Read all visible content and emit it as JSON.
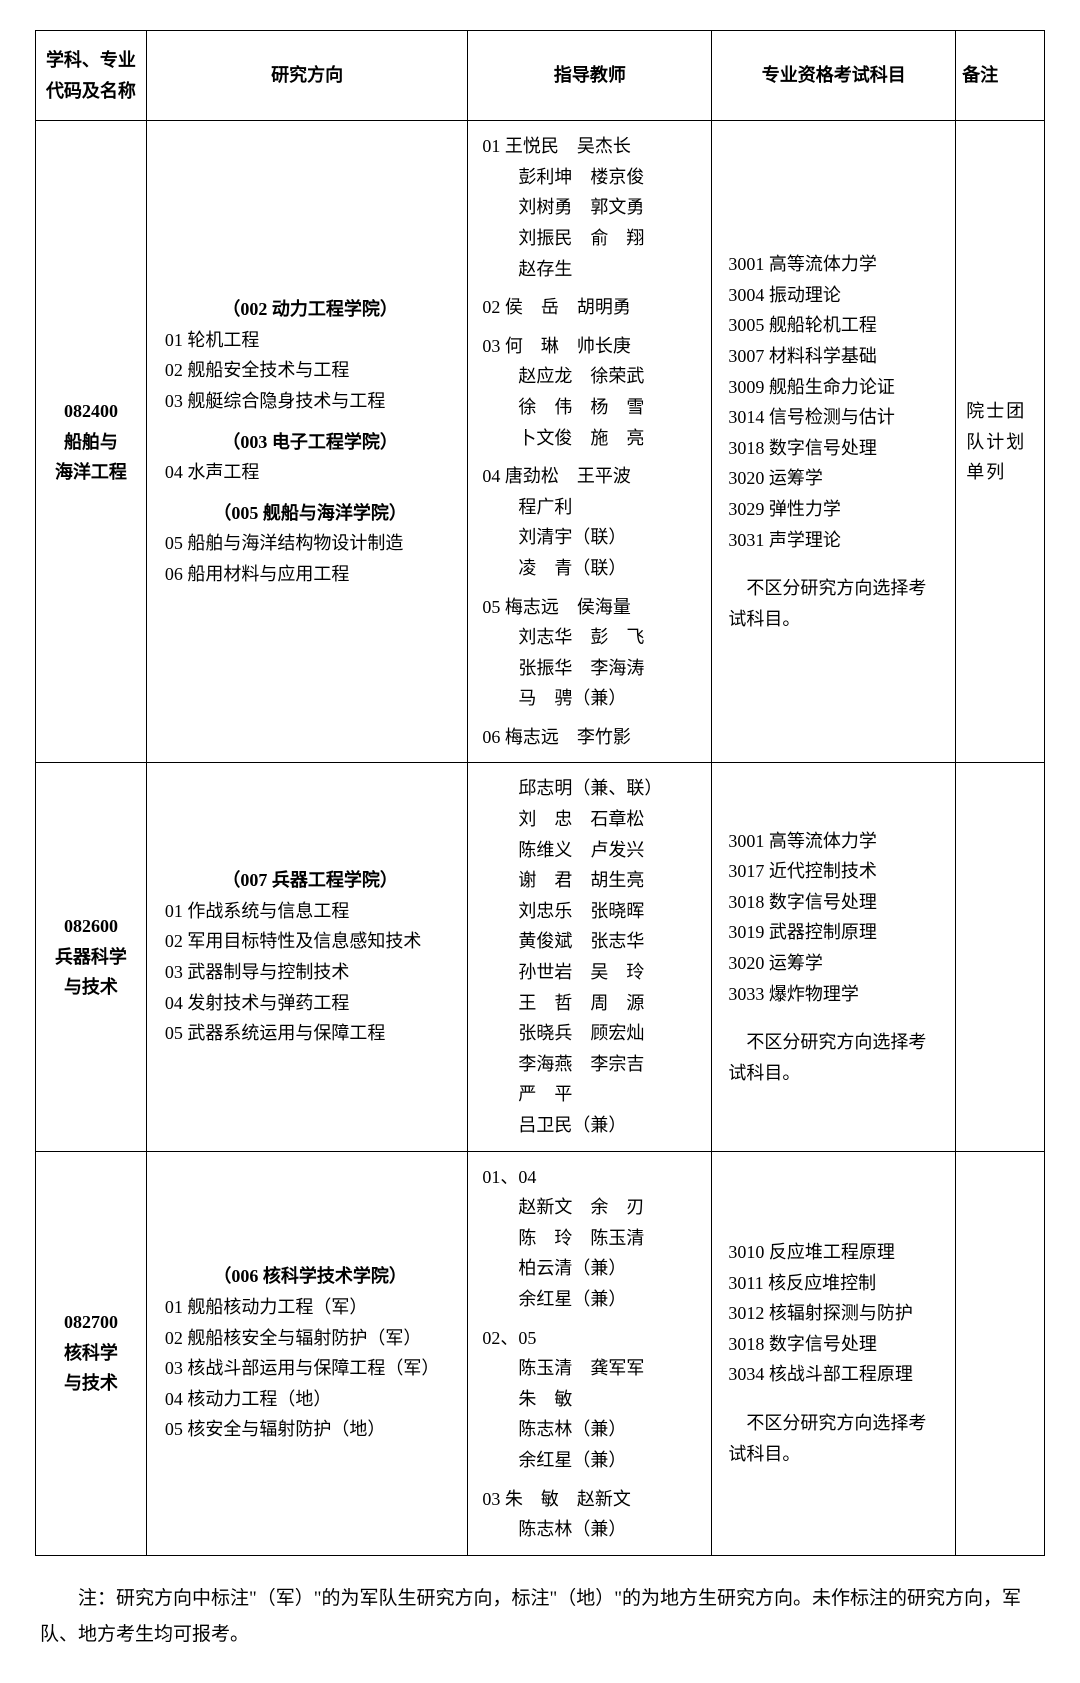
{
  "headers": {
    "code": "学科、专业代码及名称",
    "direction": "研究方向",
    "teacher": "指导教师",
    "exam": "专业资格考试科目",
    "note": "备注"
  },
  "rows": [
    {
      "code": "082400",
      "name": "船舶与\n海洋工程",
      "schools": [
        {
          "title": "（002 动力工程学院）",
          "items": [
            "01 轮机工程",
            "02 舰船安全技术与工程",
            "03 舰艇综合隐身技术与工程"
          ]
        },
        {
          "title": "（003 电子工程学院）",
          "items": [
            "04 水声工程"
          ]
        },
        {
          "title": "（005 舰船与海洋学院）",
          "items": [
            "05 船舶与海洋结构物设计制造",
            "06 船用材料与应用工程"
          ]
        }
      ],
      "teachers": [
        {
          "idx": "01",
          "names": [
            "王悦民　吴杰长",
            "彭利坤　楼京俊",
            "刘树勇　郭文勇",
            "刘振民　俞　翔",
            "赵存生"
          ]
        },
        {
          "idx": "02",
          "names": [
            "侯　岳　胡明勇"
          ]
        },
        {
          "idx": "03",
          "names": [
            "何　琳　帅长庚",
            "赵应龙　徐荣武",
            "徐　伟　杨　雪",
            "卜文俊　施　亮"
          ]
        },
        {
          "idx": "04",
          "names": [
            "唐劲松　王平波",
            "程广利",
            "刘清宇（联）",
            "凌　青（联）"
          ]
        },
        {
          "idx": "05",
          "names": [
            "梅志远　侯海量",
            "刘志华　彭　飞",
            "张振华　李海涛",
            "马　骋（兼）"
          ]
        },
        {
          "idx": "06",
          "names": [
            "梅志远　李竹影"
          ]
        }
      ],
      "exams": [
        "3001 高等流体力学",
        "3004 振动理论",
        "3005 舰船轮机工程",
        "3007 材料科学基础",
        "3009 舰船生命力论证",
        "3014 信号检测与估计",
        "3018 数字信号处理",
        "3020 运筹学",
        "3029 弹性力学",
        "3031 声学理论"
      ],
      "exam_note": "　不区分研究方向选择考试科目。",
      "note": "院士团队计划单列"
    },
    {
      "code": "082600",
      "name": "兵器科学\n与技术",
      "schools": [
        {
          "title": "（007 兵器工程学院）",
          "items": [
            "01 作战系统与信息工程",
            "02 军用目标特性及信息感知技术",
            "03 武器制导与控制技术",
            "04 发射技术与弹药工程",
            "05 武器系统运用与保障工程"
          ]
        }
      ],
      "teachers": [
        {
          "idx": "",
          "names": [
            "邱志明（兼、联）",
            "刘　忠　石章松",
            "陈维义　卢发兴",
            "谢　君　胡生亮",
            "刘忠乐　张晓晖",
            "黄俊斌　张志华",
            "孙世岩　吴　玲",
            "王　哲　周　源",
            "张晓兵　顾宏灿",
            "李海燕　李宗吉",
            "严　平",
            "吕卫民（兼）"
          ]
        }
      ],
      "exams": [
        "3001 高等流体力学",
        "3017 近代控制技术",
        "3018 数字信号处理",
        "3019 武器控制原理",
        "3020 运筹学",
        "3033 爆炸物理学"
      ],
      "exam_note": "　不区分研究方向选择考试科目。",
      "note": ""
    },
    {
      "code": "082700",
      "name": "核科学\n与技术",
      "schools": [
        {
          "title": "（006 核科学技术学院）",
          "items": [
            "01 舰船核动力工程（军）",
            "02 舰船核安全与辐射防护（军）",
            "03 核战斗部运用与保障工程（军）",
            "04 核动力工程（地）",
            "05 核安全与辐射防护（地）"
          ]
        }
      ],
      "teachers": [
        {
          "idx": "01、04",
          "names": [
            "赵新文　余　刃",
            "陈　玲　陈玉清",
            "柏云清（兼）",
            "余红星（兼）"
          ]
        },
        {
          "idx": "02、05",
          "names": [
            "陈玉清　龚军军",
            "朱　敏",
            "陈志林（兼）",
            "余红星（兼）"
          ]
        },
        {
          "idx": "03",
          "names": [
            "朱　敏　赵新文",
            "陈志林（兼）"
          ]
        }
      ],
      "exams": [
        "3010 反应堆工程原理",
        "3011 核反应堆控制",
        "3012 核辐射探测与防护",
        "3018 数字信号处理",
        "3034 核战斗部工程原理"
      ],
      "exam_note": "　不区分研究方向选择考试科目。",
      "note": ""
    }
  ],
  "footnote": "注：研究方向中标注\"（军）\"的为军队生研究方向，标注\"（地）\"的为地方生研究方向。未作标注的研究方向，军队、地方考生均可报考。",
  "colors": {
    "border": "#000000",
    "bg": "#ffffff",
    "text": "#000000"
  },
  "font": {
    "family": "SimSun",
    "body_size": 18,
    "footnote_size": 19,
    "line_height": 1.7
  }
}
